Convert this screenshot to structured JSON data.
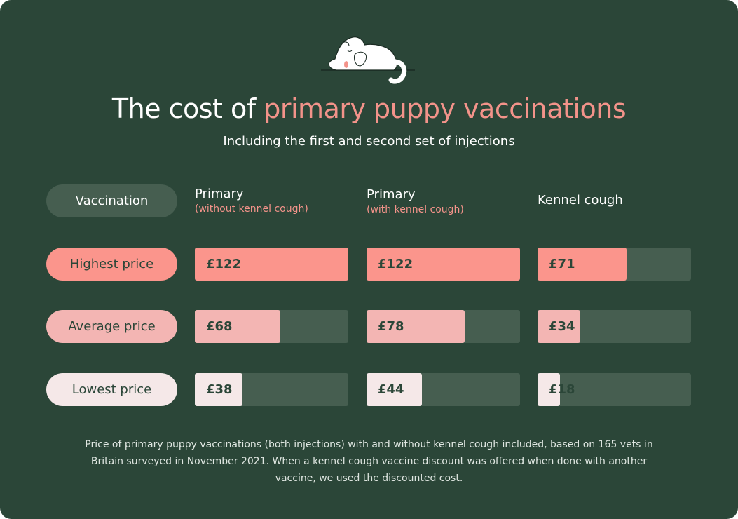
{
  "title": {
    "prefix": "The cost of ",
    "accent": "primary puppy vaccinations"
  },
  "subtitle": "Including the first and second set of injections",
  "header_label": "Vaccination",
  "colors": {
    "background": "#2b4638",
    "track": "#465e50",
    "highest": "#fb958c",
    "average": "#f3b5b3",
    "lowest": "#f5e8e8",
    "accent": "#f3938a"
  },
  "icons": {
    "illustration": "sleeping-dog-icon"
  },
  "chart_data": {
    "type": "bar",
    "categories": [
      {
        "name": "Primary",
        "note": "(without kennel cough)"
      },
      {
        "name": "Primary",
        "note": "(with kennel cough)"
      },
      {
        "name": "Kennel cough",
        "note": ""
      }
    ],
    "series": [
      {
        "name": "Highest price",
        "values": [
          122,
          122,
          71
        ],
        "labels": [
          "£122",
          "£122",
          "£71"
        ]
      },
      {
        "name": "Average price",
        "values": [
          68,
          78,
          34
        ],
        "labels": [
          "£68",
          "£78",
          "£34"
        ]
      },
      {
        "name": "Lowest price",
        "values": [
          38,
          44,
          18
        ],
        "labels": [
          "£38",
          "£44",
          "£18"
        ]
      }
    ],
    "xlim": [
      0,
      122
    ],
    "currency": "£"
  },
  "footnote": "Price of primary puppy vaccinations (both injections) with and without kennel cough included, based on 165 vets in Britain surveyed in November 2021. When a kennel cough vaccine discount was offered when done with another vaccine, we used the discounted cost."
}
